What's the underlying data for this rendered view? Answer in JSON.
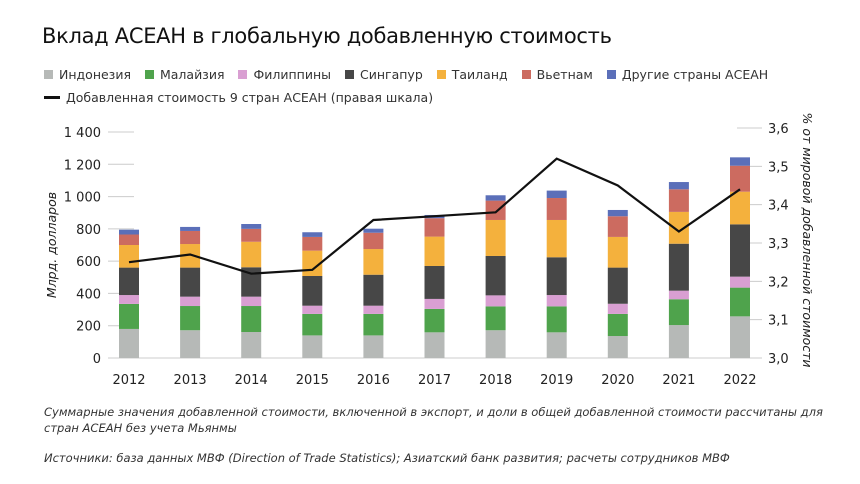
{
  "title": "Вклад АСЕАН в глобальную добавленную стоимость",
  "legend": [
    "Индонезия",
    "Малайзия",
    "Филиппины",
    "Сингапур",
    "Таиланд",
    "Вьетнам",
    "Другие страны АСЕАН"
  ],
  "line_legend": "Добавленная стоимость 9 стран АСЕАН (правая шкала)",
  "note": "Суммарные значения добавленной стоимости, включенной в экспорт, и доли в общей добавленной стоимости рассчитаны для стран АСЕАН без учета Мьянмы",
  "source": "Источники: база данных МВФ (Direction of Trade Statistics); Азиатский банк развития; расчеты сотрудников МВФ",
  "chart_data": {
    "type": "bar",
    "stacked": true,
    "title": "Вклад АСЕАН в глобальную добавленную стоимость",
    "ylabel": "Млрд. долларов",
    "y2label": "% от мировой добавленной стоимости",
    "ylim": [
      0,
      1400
    ],
    "y2lim": [
      3.0,
      3.6
    ],
    "yticks": [
      "0",
      "200",
      "400",
      "600",
      "800",
      "1 000",
      "1 200",
      "1 400"
    ],
    "y2ticks": [
      "3,0",
      "3,1",
      "3,2",
      "3,3",
      "3,4",
      "3,5",
      "3,6"
    ],
    "categories": [
      "2012",
      "2013",
      "2014",
      "2015",
      "2016",
      "2017",
      "2018",
      "2019",
      "2020",
      "2021",
      "2022"
    ],
    "series": [
      {
        "name": "Индонезия",
        "color": "#b6b9b7",
        "values": [
          180,
          172,
          161,
          140,
          140,
          159,
          172,
          159,
          136,
          204,
          258
        ]
      },
      {
        "name": "Малайзия",
        "color": "#4fa34c",
        "values": [
          155,
          150,
          161,
          133,
          133,
          145,
          148,
          161,
          137,
          160,
          178
        ]
      },
      {
        "name": "Филиппины",
        "color": "#d99fd2",
        "values": [
          55,
          58,
          58,
          51,
          51,
          62,
          68,
          70,
          63,
          53,
          68
        ]
      },
      {
        "name": "Сингапур",
        "color": "#474747",
        "values": [
          170,
          180,
          182,
          184,
          192,
          204,
          244,
          234,
          224,
          291,
          324
        ]
      },
      {
        "name": "Таиланд",
        "color": "#f4b13d",
        "values": [
          140,
          146,
          158,
          157,
          159,
          182,
          223,
          231,
          190,
          197,
          202
        ]
      },
      {
        "name": "Вьетнам",
        "color": "#cc6b60",
        "values": [
          65,
          81,
          80,
          85,
          101,
          114,
          120,
          136,
          128,
          140,
          161
        ]
      },
      {
        "name": "Другие страны АСЕАН",
        "color": "#5b6fb9",
        "values": [
          30,
          25,
          30,
          29,
          25,
          20,
          33,
          46,
          39,
          45,
          52
        ]
      }
    ],
    "line": {
      "name": "Добавленная стоимость 9 стран АСЕАН (правая шкала)",
      "axis": "right",
      "color": "#111111",
      "values": [
        3.25,
        3.27,
        3.22,
        3.23,
        3.36,
        3.37,
        3.38,
        3.52,
        3.45,
        3.33,
        3.44
      ]
    },
    "grid": false,
    "legend_position": "top"
  }
}
